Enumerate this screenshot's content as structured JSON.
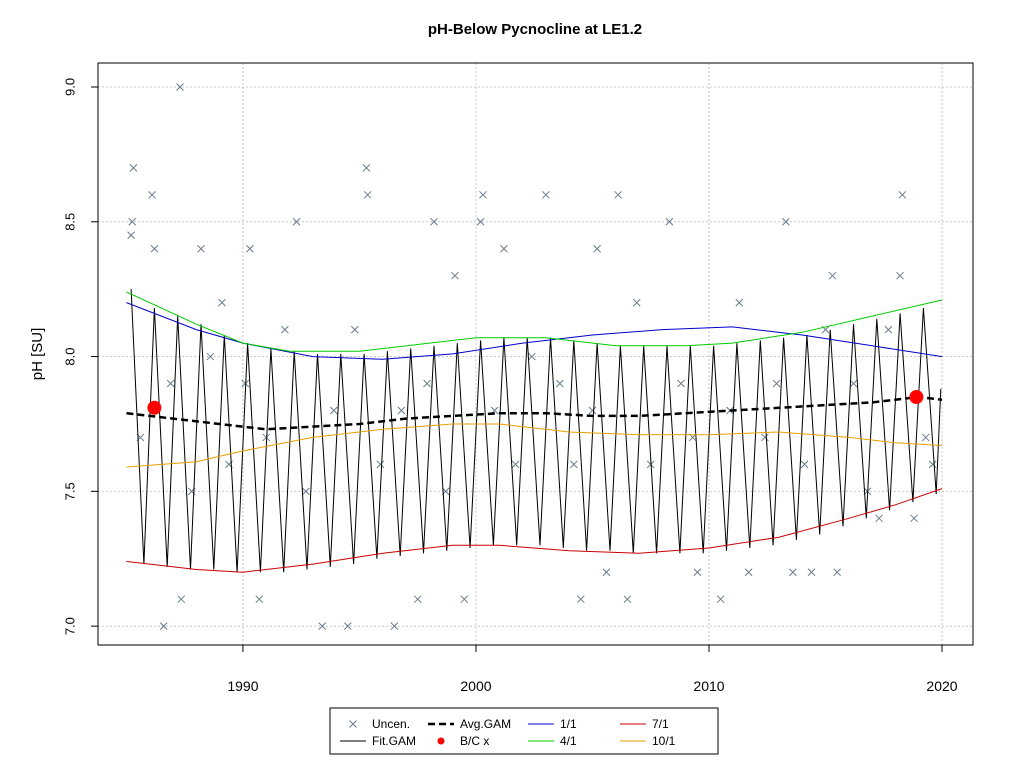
{
  "chart_data": {
    "type": "line",
    "title": "pH-Below Pycnocline at LE1.2",
    "ylabel": "pH [SU]",
    "xlim": [
      1983.78,
      2021.33
    ],
    "ylim": [
      6.93,
      9.089
    ],
    "xticks": [
      1990,
      2000,
      2010,
      2020
    ],
    "yticks": [
      {
        "value": 7,
        "label": "7.0"
      },
      7.5,
      {
        "value": 8,
        "label": "8.0"
      },
      8.5,
      {
        "value": 9,
        "label": "9.0"
      }
    ],
    "grid": true,
    "series": [
      {
        "name": "Uncen.",
        "color": "#6b7b8c",
        "style": "points",
        "x": [
          1985.2,
          1985.3,
          1985.25,
          1986.1,
          1986.2,
          1987.3,
          1987.35,
          1986.6,
          1988.2,
          1989.1,
          1990.3,
          1990.7,
          1992.3,
          1993.4,
          1994.5,
          1995.3,
          1995.35,
          1996.5,
          1997.5,
          1998.2,
          1999.5,
          2000.3,
          2000.2,
          2001.2,
          2003.0,
          2004.5,
          2005.2,
          2006.1,
          2005.6,
          2006.5,
          2008.3,
          2009.5,
          2010.5,
          2011.7,
          2013.3,
          2013.6,
          2014.4,
          2015.5,
          2015.3,
          2018.3,
          2018.2,
          2018.8,
          2017.3,
          1985.6,
          1986.9,
          1987.8,
          1988.6,
          1989.4,
          1990.1,
          1991.0,
          1991.8,
          1992.7,
          1993.9,
          1994.8,
          1995.9,
          1996.8,
          1997.9,
          1998.7,
          1999.1,
          2000.8,
          2001.7,
          2002.4,
          2003.6,
          2004.2,
          2005.0,
          2006.9,
          2007.5,
          2008.8,
          2009.3,
          2010.9,
          2011.3,
          2012.4,
          2012.9,
          2014.1,
          2015.0,
          2016.2,
          2016.8,
          2017.7,
          2019.3,
          2019.6
        ],
        "values": [
          8.45,
          8.7,
          8.5,
          8.6,
          8.4,
          9.0,
          7.1,
          7.0,
          8.4,
          8.2,
          8.4,
          7.1,
          8.5,
          7.0,
          7.0,
          8.7,
          8.6,
          7.0,
          7.1,
          8.5,
          7.1,
          8.6,
          8.5,
          8.4,
          8.6,
          7.1,
          8.4,
          8.6,
          7.2,
          7.1,
          8.5,
          7.2,
          7.1,
          7.2,
          8.5,
          7.2,
          7.2,
          7.2,
          8.3,
          8.6,
          8.3,
          7.4,
          7.4,
          7.7,
          7.9,
          7.5,
          8.0,
          7.6,
          7.9,
          7.7,
          8.1,
          7.5,
          7.8,
          8.1,
          7.6,
          7.8,
          7.9,
          7.5,
          8.3,
          7.8,
          7.6,
          8.0,
          7.9,
          7.6,
          7.8,
          8.2,
          7.6,
          7.9,
          7.7,
          7.8,
          8.2,
          7.7,
          7.9,
          7.6,
          8.1,
          7.9,
          7.5,
          8.1,
          7.7,
          7.6
        ]
      },
      {
        "name": "Fit.GAM",
        "color": "#000000",
        "style": "line",
        "x": [
          1985.2,
          1985.75,
          1986.2,
          1986.75,
          1987.2,
          1987.75,
          1988.2,
          1988.75,
          1989.2,
          1989.75,
          1990.2,
          1990.75,
          1991.2,
          1991.75,
          1992.2,
          1992.75,
          1993.2,
          1993.75,
          1994.2,
          1994.75,
          1995.2,
          1995.75,
          1996.2,
          1996.75,
          1997.2,
          1997.75,
          1998.2,
          1998.75,
          1999.2,
          1999.75,
          2000.2,
          2000.75,
          2001.2,
          2001.75,
          2002.2,
          2002.75,
          2003.2,
          2003.75,
          2004.2,
          2004.75,
          2005.2,
          2005.75,
          2006.2,
          2006.75,
          2007.2,
          2007.75,
          2008.2,
          2008.75,
          2009.2,
          2009.75,
          2010.2,
          2010.75,
          2011.2,
          2011.75,
          2012.2,
          2012.75,
          2013.2,
          2013.75,
          2014.2,
          2014.75,
          2015.2,
          2015.75,
          2016.2,
          2016.75,
          2017.2,
          2017.75,
          2018.2,
          2018.75,
          2019.2,
          2019.75,
          2019.95
        ],
        "values": [
          8.25,
          7.23,
          8.18,
          7.22,
          8.15,
          7.21,
          8.12,
          7.21,
          8.08,
          7.2,
          8.05,
          7.2,
          8.03,
          7.2,
          8.02,
          7.21,
          8.01,
          7.22,
          8.01,
          7.23,
          8.01,
          7.25,
          8.02,
          7.26,
          8.03,
          7.27,
          8.04,
          7.28,
          8.05,
          7.29,
          8.06,
          7.3,
          8.07,
          7.3,
          8.07,
          7.3,
          8.07,
          7.29,
          8.06,
          7.28,
          8.05,
          7.28,
          8.04,
          7.27,
          8.04,
          7.27,
          8.04,
          7.27,
          8.04,
          7.27,
          8.04,
          7.28,
          8.05,
          7.29,
          8.06,
          7.3,
          8.07,
          7.32,
          8.08,
          7.34,
          8.1,
          7.37,
          8.12,
          7.4,
          8.14,
          7.43,
          8.16,
          7.46,
          8.18,
          7.49,
          7.88
        ]
      },
      {
        "name": "Avg.GAM",
        "color": "#000000",
        "style": "dashed",
        "x": [
          1985,
          1987,
          1989,
          1991,
          1993,
          1995,
          1997,
          1999,
          2001,
          2003,
          2005,
          2007,
          2009,
          2011,
          2013,
          2015,
          2017,
          2019,
          2020
        ],
        "values": [
          7.79,
          7.77,
          7.75,
          7.73,
          7.74,
          7.75,
          7.77,
          7.78,
          7.79,
          7.79,
          7.78,
          7.78,
          7.79,
          7.8,
          7.81,
          7.82,
          7.83,
          7.85,
          7.84
        ]
      },
      {
        "name": "B/C x",
        "color": "#ff0000",
        "style": "dots",
        "x": [
          1986.2,
          2018.9
        ],
        "values": [
          7.81,
          7.85
        ]
      },
      {
        "name": "1/1",
        "color": "#0000cc",
        "style": "line",
        "x": [
          1985,
          1988,
          1990,
          1993,
          1996,
          1999,
          2002,
          2005,
          2008,
          2011,
          2014,
          2017,
          2020
        ],
        "values": [
          8.2,
          8.1,
          8.05,
          8.0,
          7.99,
          8.01,
          8.05,
          8.08,
          8.1,
          8.11,
          8.08,
          8.04,
          8.0
        ]
      },
      {
        "name": "4/1",
        "color": "#00cc00",
        "style": "line",
        "x": [
          1985,
          1988,
          1990,
          1992,
          1995,
          1998,
          2000,
          2003,
          2006,
          2009,
          2011,
          2014,
          2017,
          2020
        ],
        "values": [
          8.24,
          8.12,
          8.05,
          8.02,
          8.02,
          8.05,
          8.07,
          8.07,
          8.04,
          8.04,
          8.05,
          8.09,
          8.15,
          8.21
        ]
      },
      {
        "name": "7/1",
        "color": "#cc0000",
        "style": "line",
        "x": [
          1985,
          1988,
          1990,
          1993,
          1996,
          1999,
          2001,
          2004,
          2007,
          2010,
          2013,
          2016,
          2018,
          2020
        ],
        "values": [
          7.24,
          7.21,
          7.2,
          7.23,
          7.27,
          7.3,
          7.3,
          7.28,
          7.27,
          7.29,
          7.33,
          7.4,
          7.45,
          7.51
        ]
      },
      {
        "name": "10/1",
        "color": "#e69f00",
        "style": "line",
        "x": [
          1985,
          1988,
          1990,
          1993,
          1996,
          1999,
          2001,
          2004,
          2007,
          2010,
          2013,
          2016,
          2018,
          2020
        ],
        "values": [
          7.59,
          7.61,
          7.65,
          7.7,
          7.73,
          7.75,
          7.75,
          7.72,
          7.71,
          7.71,
          7.72,
          7.7,
          7.68,
          7.67
        ]
      }
    ]
  }
}
